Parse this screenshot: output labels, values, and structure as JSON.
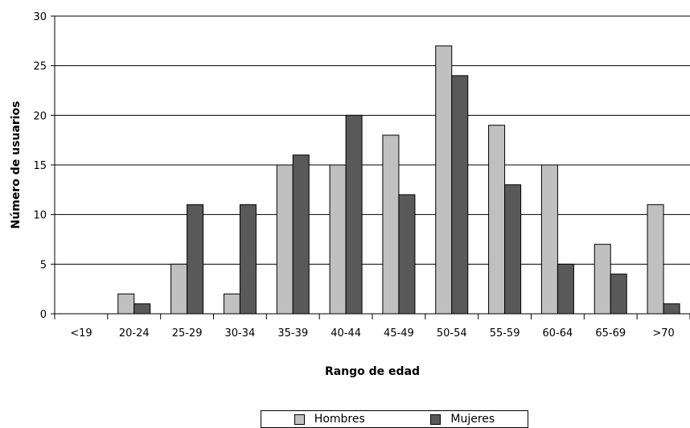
{
  "chart_data": {
    "type": "bar",
    "title": "",
    "xlabel": "Rango de edad",
    "ylabel": "Número de usuarios",
    "categories": [
      "<19",
      "20-24",
      "25-29",
      "30-34",
      "35-39",
      "40-44",
      "45-49",
      "50-54",
      "55-59",
      "60-64",
      "65-69",
      ">70"
    ],
    "series": [
      {
        "name": "Hombres",
        "color": "#c0c0c0",
        "values": [
          0,
          2,
          5,
          2,
          15,
          15,
          18,
          27,
          19,
          15,
          7,
          11
        ]
      },
      {
        "name": "Mujeres",
        "color": "#595959",
        "values": [
          0,
          1,
          11,
          11,
          16,
          20,
          12,
          24,
          13,
          5,
          4,
          1
        ]
      }
    ],
    "ylim": [
      0,
      30
    ],
    "yticks": [
      0,
      5,
      10,
      15,
      20,
      25,
      30
    ],
    "grid": true,
    "legend_position": "bottom"
  }
}
